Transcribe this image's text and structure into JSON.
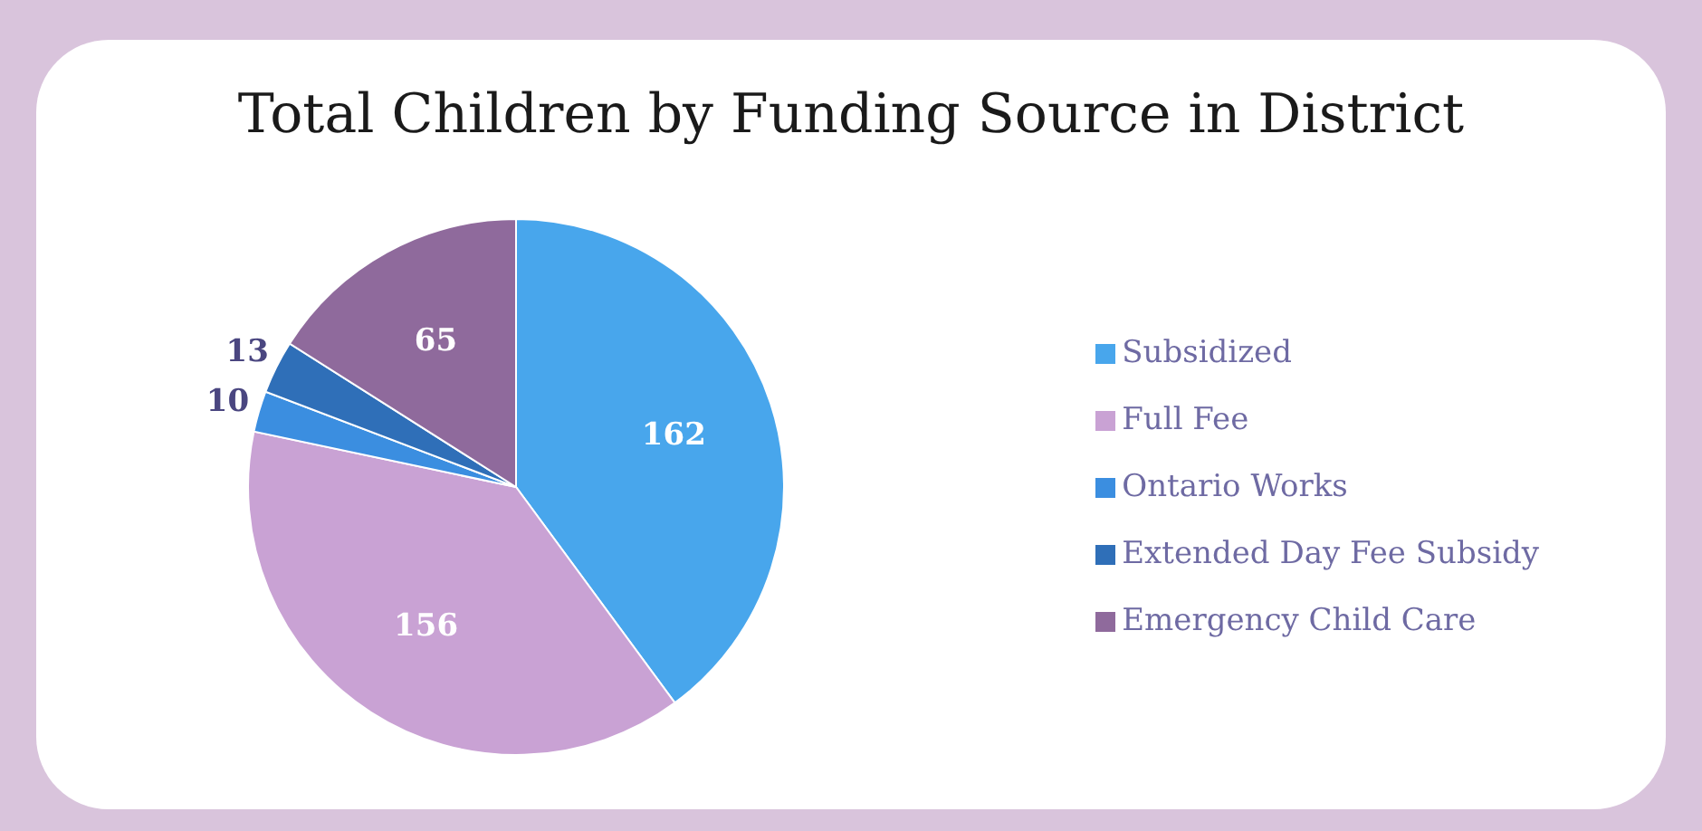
{
  "chart_data": {
    "type": "pie",
    "title": "Total Children by Funding Source in District",
    "categories": [
      "Subsidized",
      "Full Fee",
      "Ontario Works",
      "Extended Day Fee Subsidy",
      "Emergency Child Care"
    ],
    "values": [
      162,
      156,
      10,
      13,
      65
    ],
    "colors": [
      "#48a6ec",
      "#c9a2d4",
      "#3b8ee0",
      "#2f6fb8",
      "#8f6a9c"
    ],
    "data_labels": true,
    "legend": "right"
  }
}
